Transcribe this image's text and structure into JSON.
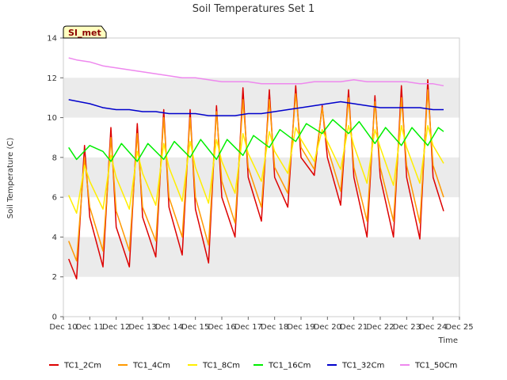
{
  "chart_data": {
    "type": "line",
    "title": "Soil Temperatures Set 1",
    "xlabel": "Time",
    "ylabel": "Soil Temperature (C)",
    "site_label": "SI_met",
    "xlim": [
      10,
      25
    ],
    "ylim": [
      0,
      14
    ],
    "x_ticks": [
      10,
      11,
      12,
      13,
      14,
      15,
      16,
      17,
      18,
      19,
      20,
      21,
      22,
      23,
      24,
      25
    ],
    "x_tick_labels": [
      "Dec 10",
      "Dec 11",
      "Dec 12",
      "Dec 13",
      "Dec 14",
      "Dec 15",
      "Dec 16",
      "Dec 17",
      "Dec 18",
      "Dec 19",
      "Dec 20",
      "Dec 21",
      "Dec 22",
      "Dec 23",
      "Dec 24",
      "Dec 25"
    ],
    "y_ticks": [
      0,
      2,
      4,
      6,
      8,
      10,
      12,
      14
    ],
    "y_tick_labels": [
      "0",
      "2",
      "4",
      "6",
      "8",
      "10",
      "12",
      "14"
    ],
    "grid": "horizontal bands",
    "legend_position": "bottom",
    "series": [
      {
        "name": "TC1_2Cm",
        "color": "#dd0000",
        "x": [
          10.2,
          10.5,
          10.8,
          11.0,
          11.5,
          11.8,
          12.0,
          12.5,
          12.8,
          13.0,
          13.5,
          13.8,
          14.0,
          14.5,
          14.8,
          15.0,
          15.5,
          15.8,
          16.0,
          16.5,
          16.8,
          17.0,
          17.5,
          17.8,
          18.0,
          18.5,
          18.8,
          19.0,
          19.5,
          19.8,
          20.0,
          20.5,
          20.8,
          21.0,
          21.5,
          21.8,
          22.0,
          22.5,
          22.8,
          23.0,
          23.5,
          23.8,
          24.0,
          24.4
        ],
        "y": [
          2.9,
          1.9,
          8.6,
          5.0,
          2.5,
          9.5,
          4.5,
          2.5,
          9.7,
          5.0,
          3.0,
          10.4,
          5.5,
          3.1,
          10.4,
          5.4,
          2.7,
          10.6,
          6.0,
          4.0,
          11.5,
          7.0,
          4.8,
          11.4,
          7.0,
          5.5,
          11.6,
          8.0,
          7.1,
          10.6,
          8.0,
          5.6,
          11.4,
          7.0,
          4.0,
          11.1,
          7.0,
          4.0,
          11.6,
          7.0,
          3.9,
          11.9,
          7.0,
          5.3
        ]
      },
      {
        "name": "TC1_4Cm",
        "color": "#ff9900",
        "x": [
          10.2,
          10.5,
          10.8,
          11.0,
          11.5,
          11.8,
          12.0,
          12.5,
          12.8,
          13.0,
          13.5,
          13.8,
          14.0,
          14.5,
          14.8,
          15.0,
          15.5,
          15.8,
          16.0,
          16.5,
          16.8,
          17.0,
          17.5,
          17.8,
          18.0,
          18.5,
          18.8,
          19.0,
          19.5,
          19.8,
          20.0,
          20.5,
          20.8,
          21.0,
          21.5,
          21.8,
          22.0,
          22.5,
          22.8,
          23.0,
          23.5,
          23.8,
          24.0,
          24.4
        ],
        "y": [
          3.8,
          2.8,
          8.0,
          5.5,
          3.3,
          9.0,
          5.3,
          3.3,
          9.2,
          5.5,
          3.8,
          10.0,
          6.0,
          4.0,
          10.0,
          6.0,
          3.6,
          10.3,
          6.8,
          4.7,
          10.9,
          7.5,
          5.5,
          10.9,
          7.5,
          6.2,
          11.2,
          8.5,
          7.4,
          10.5,
          8.5,
          6.3,
          11.0,
          7.5,
          4.8,
          10.8,
          7.5,
          4.8,
          11.0,
          7.6,
          4.7,
          11.4,
          7.6,
          6.0
        ]
      },
      {
        "name": "TC1_8Cm",
        "color": "#ffee00",
        "x": [
          10.2,
          10.5,
          10.8,
          11.0,
          11.5,
          11.8,
          12.0,
          12.5,
          12.8,
          13.0,
          13.5,
          13.8,
          14.0,
          14.5,
          14.8,
          15.0,
          15.5,
          15.8,
          16.0,
          16.5,
          16.8,
          17.0,
          17.5,
          17.8,
          18.0,
          18.5,
          18.8,
          19.0,
          19.5,
          19.8,
          20.0,
          20.5,
          20.8,
          21.0,
          21.5,
          21.8,
          22.0,
          22.5,
          22.8,
          23.0,
          23.5,
          23.8,
          24.0,
          24.4
        ],
        "y": [
          6.1,
          5.2,
          7.6,
          6.8,
          5.4,
          8.1,
          7.0,
          5.4,
          8.3,
          7.2,
          5.6,
          8.7,
          7.5,
          5.8,
          8.8,
          7.5,
          5.7,
          8.9,
          7.8,
          6.2,
          9.2,
          8.2,
          6.8,
          9.3,
          8.3,
          7.2,
          9.5,
          8.9,
          7.8,
          9.4,
          8.8,
          7.4,
          9.6,
          8.6,
          6.7,
          9.4,
          8.5,
          6.6,
          9.6,
          8.5,
          6.7,
          9.6,
          8.6,
          7.7
        ]
      },
      {
        "name": "TC1_16Cm",
        "color": "#00ee00",
        "x": [
          10.2,
          10.5,
          11.0,
          11.5,
          11.8,
          12.2,
          12.8,
          13.2,
          13.8,
          14.2,
          14.8,
          15.2,
          15.8,
          16.2,
          16.8,
          17.2,
          17.8,
          18.2,
          18.8,
          19.2,
          19.8,
          20.2,
          20.8,
          21.2,
          21.8,
          22.2,
          22.8,
          23.2,
          23.8,
          24.2,
          24.4
        ],
        "y": [
          8.5,
          7.9,
          8.6,
          8.3,
          7.8,
          8.7,
          7.8,
          8.7,
          7.9,
          8.8,
          8.0,
          8.9,
          7.9,
          8.9,
          8.1,
          9.1,
          8.5,
          9.4,
          8.8,
          9.7,
          9.2,
          9.9,
          9.2,
          9.8,
          8.7,
          9.5,
          8.6,
          9.5,
          8.6,
          9.5,
          9.3
        ]
      },
      {
        "name": "TC1_32Cm",
        "color": "#0000cc",
        "x": [
          10.2,
          11.0,
          11.5,
          12.0,
          12.5,
          13.0,
          13.5,
          14.0,
          14.5,
          15.0,
          15.5,
          16.0,
          16.5,
          17.0,
          17.5,
          18.0,
          18.5,
          19.0,
          19.5,
          20.0,
          20.5,
          21.0,
          21.5,
          22.0,
          22.5,
          23.0,
          23.5,
          24.0,
          24.4
        ],
        "y": [
          10.9,
          10.7,
          10.5,
          10.4,
          10.4,
          10.3,
          10.3,
          10.2,
          10.2,
          10.2,
          10.1,
          10.1,
          10.1,
          10.2,
          10.2,
          10.3,
          10.4,
          10.5,
          10.6,
          10.7,
          10.8,
          10.7,
          10.6,
          10.5,
          10.5,
          10.5,
          10.5,
          10.4,
          10.4
        ]
      },
      {
        "name": "TC1_50Cm",
        "color": "#ee88ee",
        "x": [
          10.2,
          10.5,
          11.0,
          11.5,
          12.0,
          12.5,
          13.0,
          13.5,
          14.0,
          14.5,
          15.0,
          15.5,
          16.0,
          16.5,
          17.0,
          17.5,
          18.0,
          18.5,
          19.0,
          19.5,
          20.0,
          20.5,
          21.0,
          21.5,
          22.0,
          22.5,
          23.0,
          23.5,
          24.0,
          24.4
        ],
        "y": [
          13.0,
          12.9,
          12.8,
          12.6,
          12.5,
          12.4,
          12.3,
          12.2,
          12.1,
          12.0,
          12.0,
          11.9,
          11.8,
          11.8,
          11.8,
          11.7,
          11.7,
          11.7,
          11.7,
          11.8,
          11.8,
          11.8,
          11.9,
          11.8,
          11.8,
          11.8,
          11.8,
          11.7,
          11.7,
          11.6
        ]
      }
    ]
  }
}
